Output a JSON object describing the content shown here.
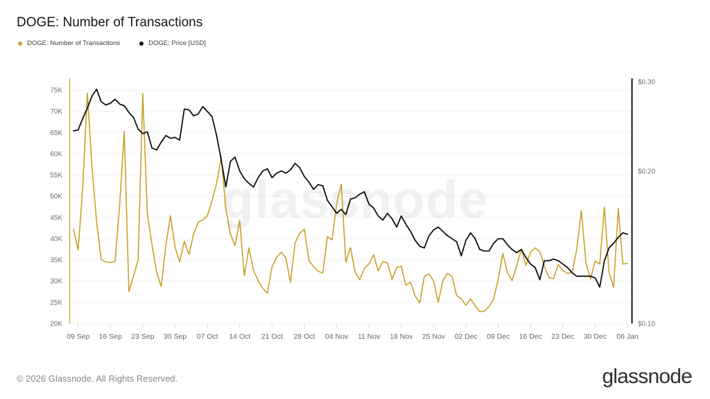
{
  "header": {
    "title": "DOGE: Number of Transactions"
  },
  "footer": {
    "copyright": "© 2026 Glassnode. All Rights Reserved.",
    "brand": "glassnode"
  },
  "chart_data": {
    "type": "line",
    "title": "DOGE: Number of Transactions",
    "watermark": "glassnode",
    "legend_position": "top-left",
    "grid": "horizontal",
    "x_tick_labels": [
      "09 Sep",
      "16 Sep",
      "23 Sep",
      "30 Sep",
      "07 Oct",
      "14 Oct",
      "21 Oct",
      "28 Oct",
      "04 Nov",
      "11 Nov",
      "18 Nov",
      "25 Nov",
      "02 Dec",
      "09 Dec",
      "16 Dec",
      "23 Dec",
      "30 Dec",
      "06 Jan"
    ],
    "x_tick_start_index": 1,
    "x_tick_step": 7,
    "y_left": {
      "scale": "linear",
      "unit": "K transactions",
      "min": 20,
      "max": 75,
      "tick_labels": [
        "75K",
        "70K",
        "65K",
        "60K",
        "55K",
        "50K",
        "45K",
        "40K",
        "35K",
        "30K",
        "25K",
        "20K"
      ],
      "tick_values": [
        75,
        70,
        65,
        60,
        55,
        50,
        45,
        40,
        35,
        30,
        25,
        20
      ],
      "axis_color": "#c8a02a"
    },
    "y_right": {
      "scale": "log",
      "unit": "USD",
      "min": 0.1,
      "max": 0.3,
      "tick_labels": [
        "$0.30",
        "$0.20",
        "$0.10"
      ],
      "tick_values": [
        0.3,
        0.2,
        0.1
      ],
      "axis_color": "#111111"
    },
    "series": [
      {
        "name": "DOGE: Number of Transactions",
        "axis": "left",
        "color": "#c8a02a",
        "unit": "K",
        "values": [
          42.2,
          37.3,
          52,
          74.3,
          57,
          44,
          35.1,
          34.5,
          34.4,
          34.6,
          48,
          65.3,
          27.5,
          31.2,
          35,
          74.2,
          46,
          38.5,
          32.2,
          28.7,
          38.4,
          45.4,
          38,
          34.5,
          39.4,
          36.2,
          41,
          43.9,
          44.4,
          45.4,
          49,
          53,
          59.3,
          47,
          41,
          38.4,
          44.3,
          31.3,
          37.8,
          32.5,
          30.1,
          28.3,
          27.1,
          33.3,
          35.6,
          36.8,
          35.4,
          29.7,
          39,
          41.3,
          42.2,
          34.8,
          33.4,
          32.3,
          31.9,
          40.5,
          39.7,
          48.2,
          52.8,
          34.5,
          37.9,
          32.1,
          30.3,
          33,
          34,
          36.2,
          32.4,
          34.6,
          34.3,
          30.4,
          33.2,
          33.5,
          29,
          29.8,
          26.5,
          24.8,
          31.1,
          31.7,
          30,
          25,
          30.1,
          31.8,
          31.1,
          26.6,
          25.8,
          24.3,
          25.8,
          24.2,
          22.8,
          22.9,
          24,
          25.7,
          30.5,
          36.5,
          32,
          30.1,
          33.6,
          37.5,
          33.7,
          36.8,
          37.8,
          36.9,
          33.5,
          30.8,
          30.6,
          33.9,
          32.5,
          31.8,
          32.1,
          37.5,
          46.6,
          34.3,
          30.5,
          34.7,
          34,
          47.4,
          32,
          28.5,
          47.1,
          34,
          34.2
        ]
      },
      {
        "name": "DOGE: Price [USD]",
        "axis": "right",
        "color": "#0f0f0f",
        "unit": "USD",
        "values": [
          0.24,
          0.241,
          0.254,
          0.266,
          0.281,
          0.29,
          0.274,
          0.27,
          0.272,
          0.277,
          0.271,
          0.269,
          0.261,
          0.255,
          0.242,
          0.237,
          0.239,
          0.222,
          0.22,
          0.228,
          0.235,
          0.232,
          0.233,
          0.23,
          0.265,
          0.264,
          0.257,
          0.259,
          0.268,
          0.262,
          0.256,
          0.235,
          0.21,
          0.186,
          0.209,
          0.213,
          0.2,
          0.193,
          0.189,
          0.186,
          0.194,
          0.2,
          0.202,
          0.194,
          0.198,
          0.2,
          0.198,
          0.201,
          0.207,
          0.203,
          0.195,
          0.19,
          0.184,
          0.188,
          0.187,
          0.175,
          0.17,
          0.165,
          0.168,
          0.164,
          0.176,
          0.177,
          0.18,
          0.182,
          0.172,
          0.169,
          0.163,
          0.16,
          0.165,
          0.161,
          0.155,
          0.163,
          0.157,
          0.152,
          0.146,
          0.142,
          0.141,
          0.149,
          0.153,
          0.155,
          0.152,
          0.149,
          0.147,
          0.145,
          0.136,
          0.146,
          0.151,
          0.147,
          0.14,
          0.139,
          0.139,
          0.144,
          0.147,
          0.147,
          0.143,
          0.14,
          0.138,
          0.14,
          0.135,
          0.131,
          0.129,
          0.122,
          0.133,
          0.133,
          0.134,
          0.133,
          0.131,
          0.129,
          0.126,
          0.124,
          0.124,
          0.124,
          0.124,
          0.123,
          0.118,
          0.133,
          0.141,
          0.144,
          0.148,
          0.151,
          0.15
        ]
      }
    ]
  }
}
